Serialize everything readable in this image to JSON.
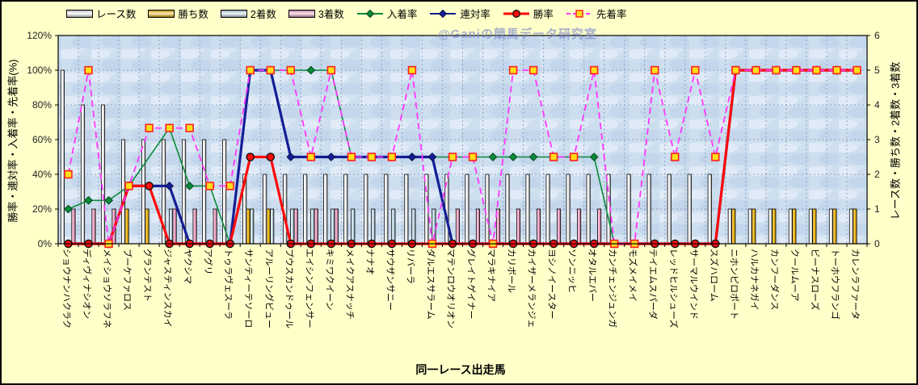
{
  "watermark": "@Ganiの競馬データ研究室",
  "colors": {
    "page_bg": "#ffffc9",
    "plot_bg": "#cddeef",
    "grid": "#93a4c4",
    "races_bar": "#ffffff",
    "wins_bar": "#ffc414",
    "seconds_bar": "#cfe9f7",
    "thirds_bar": "#ffaed2",
    "nyuchaku_line": "#0a8a3a",
    "rentai_line": "#141e96",
    "shoritsu_line": "#ff0a0a",
    "senchaku_line": "#ff35ff",
    "senchaku_marker_fill": "#ffdf1a",
    "senchaku_marker_stroke": "#ff2020"
  },
  "legend": [
    {
      "label": "レース数",
      "type": "bar",
      "color": "#ffffff"
    },
    {
      "label": "勝ち数",
      "type": "bar",
      "color": "#ffc414"
    },
    {
      "label": "2着数",
      "type": "bar",
      "color": "#cfe9f7"
    },
    {
      "label": "3着数",
      "type": "bar",
      "color": "#ffaed2"
    },
    {
      "label": "入着率",
      "type": "line-diamond",
      "color": "#0a8a3a"
    },
    {
      "label": "連対率",
      "type": "line-diamond",
      "color": "#141e96"
    },
    {
      "label": "勝率",
      "type": "line-circle",
      "color": "#ff0a0a"
    },
    {
      "label": "先着率",
      "type": "dash-square",
      "color": "#ff35ff"
    }
  ],
  "chart_data": {
    "type": "combo-bar-line",
    "x_title": "同一レース出走馬",
    "left_axis": {
      "title": "勝率・連対率・入着率・先着率(%)",
      "min": 0,
      "max": 120,
      "step": 20,
      "ticks": [
        "0%",
        "20%",
        "40%",
        "60%",
        "80%",
        "100%",
        "120%"
      ]
    },
    "right_axis": {
      "title": "レース数・勝ち数・2着数・3着数",
      "min": 0,
      "max": 6,
      "step": 1,
      "ticks": [
        "0",
        "1",
        "2",
        "3",
        "4",
        "5",
        "6"
      ]
    },
    "grid": "both-dotted",
    "legend_position": "top",
    "categories": [
      "ショウナンハクラク",
      "ディヴィナシオン",
      "メイショウソラフネ",
      "ブーケファロス",
      "グランテスト",
      "ジャスティンスカイ",
      "ヤクシマ",
      "アグリ",
      "トゥラヴェスーラ",
      "サンティーテソーロ",
      "アルーリングビュー",
      "プウスカンドゥール",
      "エイシンフェンサー",
      "キミワクイーン",
      "メイクアスナッチ",
      "ナナオ",
      "サウザンサニー",
      "リバーラ",
      "ダルエスサラーム",
      "マテンロウオリオン",
      "グレイトゲイナー",
      "マラキナイア",
      "カリボール",
      "カイザーメランジェ",
      "ヨシノイースター",
      "ソンニッヒ",
      "オタルエバー",
      "カンチェンジュンガ",
      "モズメイメイ",
      "テイエムスパーダ",
      "レッドヒルシューズ",
      "サーマルウインド",
      "スズハローム",
      "ニホンピロポート",
      "ハルカナネガイ",
      "カンフーダンス",
      "クールムーア",
      "ビーナスローズ",
      "トーホウフランゴ",
      "カレンラファータ"
    ],
    "bar_series": [
      {
        "name": "レース数",
        "axis": "right",
        "color": "#ffffff",
        "values": [
          5,
          4,
          4,
          3,
          3,
          3,
          3,
          3,
          3,
          2,
          2,
          2,
          2,
          2,
          2,
          2,
          2,
          2,
          2,
          2,
          2,
          2,
          2,
          2,
          2,
          2,
          2,
          2,
          2,
          2,
          2,
          2,
          2,
          1,
          1,
          1,
          1,
          1,
          1,
          1
        ]
      },
      {
        "name": "勝ち数",
        "axis": "right",
        "color": "#ffc414",
        "values": [
          0,
          0,
          0,
          1,
          1,
          0,
          0,
          0,
          0,
          1,
          1,
          0,
          0,
          0,
          0,
          0,
          0,
          0,
          0,
          0,
          0,
          0,
          0,
          0,
          0,
          0,
          0,
          0,
          0,
          0,
          0,
          0,
          0,
          1,
          1,
          1,
          1,
          1,
          1,
          1
        ]
      },
      {
        "name": "2着数",
        "axis": "right",
        "color": "#cfe9f7",
        "values": [
          0,
          0,
          0,
          0,
          0,
          1,
          0,
          0,
          0,
          1,
          1,
          1,
          1,
          1,
          1,
          1,
          1,
          1,
          1,
          0,
          0,
          0,
          0,
          0,
          0,
          0,
          0,
          0,
          0,
          0,
          0,
          0,
          0,
          0,
          0,
          0,
          0,
          0,
          0,
          0
        ]
      },
      {
        "name": "3着数",
        "axis": "right",
        "color": "#ffaed2",
        "values": [
          1,
          1,
          1,
          0,
          0,
          1,
          1,
          1,
          0,
          0,
          0,
          1,
          1,
          1,
          0,
          0,
          0,
          0,
          0,
          1,
          1,
          1,
          1,
          1,
          1,
          1,
          1,
          0,
          0,
          0,
          0,
          0,
          0,
          0,
          0,
          0,
          0,
          0,
          0,
          0
        ]
      }
    ],
    "line_series": [
      {
        "name": "入着率",
        "axis": "left",
        "unit": "%",
        "color": "#0a8a3a",
        "width": 1.6,
        "dash": null,
        "marker": "diamond",
        "marker_fill": "#0a8a3a",
        "marker_stroke": "#064a1e",
        "values": [
          20,
          25,
          25,
          33.3,
          null,
          66.7,
          33.3,
          33.3,
          0,
          100,
          100,
          100,
          100,
          100,
          50,
          50,
          50,
          50,
          50,
          50,
          50,
          50,
          50,
          50,
          50,
          50,
          50,
          0,
          0,
          0,
          0,
          0,
          0,
          100,
          100,
          100,
          100,
          100,
          100,
          100
        ]
      },
      {
        "name": "連対率",
        "axis": "left",
        "unit": "%",
        "color": "#141e96",
        "width": 3.2,
        "dash": null,
        "marker": "diamond",
        "marker_fill": "#141e96",
        "marker_stroke": "#0a1050",
        "values": [
          0,
          0,
          0,
          33.3,
          33.3,
          33.3,
          0,
          0,
          0,
          100,
          100,
          50,
          50,
          50,
          50,
          50,
          50,
          50,
          50,
          0,
          0,
          0,
          0,
          0,
          0,
          0,
          0,
          0,
          0,
          0,
          0,
          0,
          0,
          100,
          100,
          100,
          100,
          100,
          100,
          100
        ]
      },
      {
        "name": "勝率",
        "axis": "left",
        "unit": "%",
        "color": "#ff0a0a",
        "width": 3.2,
        "dash": null,
        "marker": "circle",
        "marker_fill": "#ff0a0a",
        "marker_stroke": "#111111",
        "values": [
          0,
          0,
          0,
          33.3,
          33.3,
          0,
          0,
          0,
          0,
          50,
          50,
          0,
          0,
          0,
          0,
          0,
          0,
          0,
          0,
          0,
          0,
          0,
          0,
          0,
          0,
          0,
          0,
          0,
          0,
          0,
          0,
          0,
          0,
          100,
          100,
          100,
          100,
          100,
          100,
          100
        ]
      },
      {
        "name": "先着率",
        "axis": "left",
        "unit": "%",
        "color": "#ff35ff",
        "width": 1.8,
        "dash": "8 5",
        "marker": "square",
        "marker_fill": "#ffdf1a",
        "marker_stroke": "#ff2020",
        "values": [
          40,
          100,
          0,
          33.3,
          66.7,
          66.7,
          66.7,
          33.3,
          33.3,
          100,
          100,
          100,
          50,
          100,
          50,
          50,
          50,
          100,
          0,
          50,
          50,
          0,
          100,
          100,
          50,
          50,
          100,
          0,
          0,
          100,
          50,
          100,
          50,
          100,
          100,
          100,
          100,
          100,
          100,
          100
        ]
      }
    ]
  }
}
